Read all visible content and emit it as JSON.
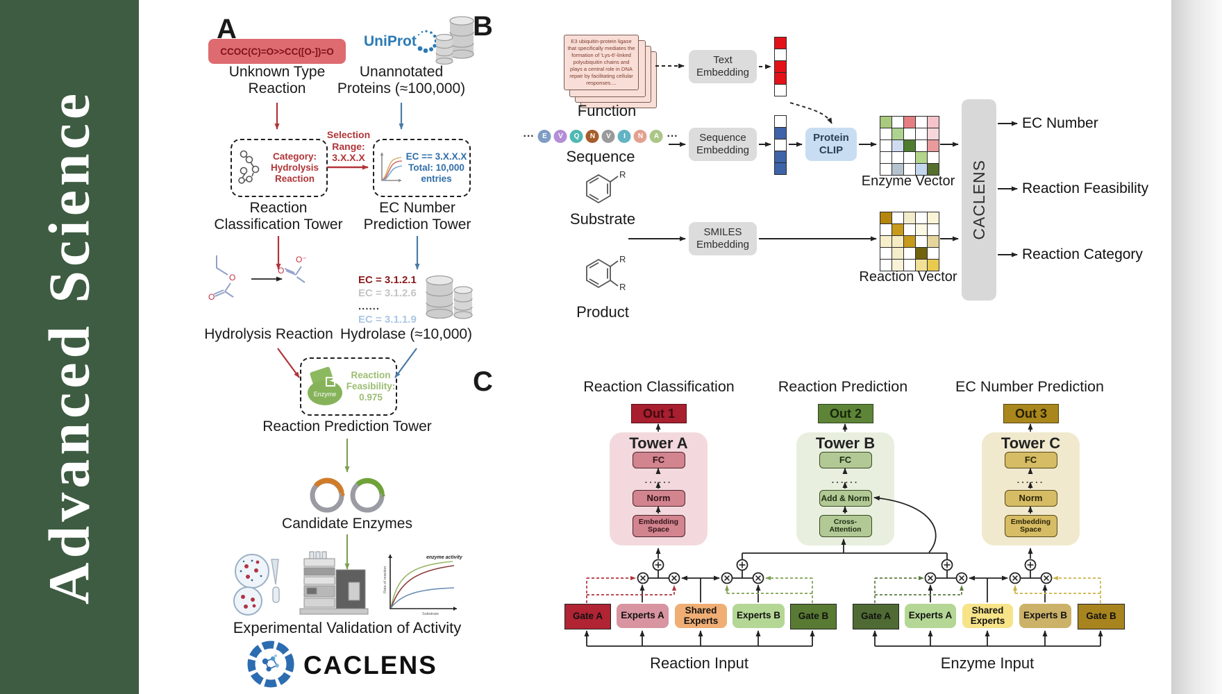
{
  "journal": {
    "vertical_text": "Advanced  Science"
  },
  "colors": {
    "sidebar_green": "#3e5c42",
    "red_accent": "#b13437",
    "blue_accent": "#4a7ba6",
    "green_accent": "#7f9f53",
    "smiles_box_bg": "#dd6b70",
    "tower_a_bg": "#f3d9dd",
    "tower_b_bg": "#e9efdf",
    "tower_c_bg": "#f1e9cd",
    "out1_bg": "#a81f2f",
    "out2_bg": "#5e8437",
    "out3_bg": "#a9871c",
    "protein_clip_bg": "#c9ddf2",
    "gray_box_bg": "#dcdcdc"
  },
  "panelA": {
    "label": "A",
    "smiles_box": "CCOC(C)=O>>CC([O-])=O",
    "unknown_type": [
      "Unknown Type",
      "Reaction"
    ],
    "uniprot": "UniProt",
    "unannotated": [
      "Unannotated",
      "Proteins (≈100,000)"
    ],
    "selection": [
      "Selection",
      "Range:",
      "3.X.X.X"
    ],
    "classification_box": [
      "Category:",
      "Hydrolysis",
      "Reaction"
    ],
    "ec_box": [
      "EC == 3.X.X.X",
      "Total: 10,000",
      "entries"
    ],
    "classification_tower": [
      "Reaction",
      "Classification Tower"
    ],
    "ec_tower": [
      "EC Number",
      "Prediction Tower"
    ],
    "ec_list": [
      "EC = 3.1.2.1",
      "EC = 3.1.2.6",
      "......",
      "EC = 3.1.1.9"
    ],
    "hydrolysis_reaction": "Hydrolysis Reaction",
    "hydrolase": "Hydrolase (≈10,000)",
    "enzyme_blob": "Enzyme",
    "feasibility": [
      "Reaction",
      "Feasibility:",
      "0.975"
    ],
    "prediction_tower": "Reaction Prediction Tower",
    "candidate_enzymes": "Candidate Enzymes",
    "atom_o": "O",
    "atom_o_minus": "O⁻",
    "activity_graph": {
      "curve_label": "enzyme activity",
      "ylabel": "Rate of reaction",
      "xlabel": "Substrate",
      "curve_colors": [
        "#9ab86a",
        "#8b3a3a",
        "#6a8fb5"
      ]
    },
    "validation": "Experimental Validation of Activity",
    "logo_text": "CACLENS"
  },
  "panelB": {
    "label": "B",
    "function_card": "E3 ubiquitin-protein ligase that specifically mediates the formation of 'Lys-6'-linked polyubiquitin chains and plays a central role in DNA repair by facilitating cellular responses....",
    "function_label": "Function",
    "ellipsis": "···",
    "sequence_label": "Sequence",
    "letters": [
      {
        "t": "E",
        "c": "#7f9dc4"
      },
      {
        "t": "V",
        "c": "#b48ed6"
      },
      {
        "t": "Q",
        "c": "#4fb8b2"
      },
      {
        "t": "N",
        "c": "#a65c2b"
      },
      {
        "t": "V",
        "c": "#9a9a9a"
      },
      {
        "t": "I",
        "c": "#62b4c5"
      },
      {
        "t": "N",
        "c": "#e2a18f"
      },
      {
        "t": "A",
        "c": "#abc687"
      }
    ],
    "substrate_label": "Substrate",
    "product_label": "Product",
    "r_label": "R",
    "text_embedding": [
      "Text",
      "Embedding"
    ],
    "sequence_embedding": [
      "Sequence",
      "Embedding"
    ],
    "smiles_embedding": [
      "SMILES",
      "Embedding"
    ],
    "protein_clip": [
      "Protein",
      "CLIP"
    ],
    "text_vector_cells": [
      [
        "#e31219"
      ],
      [
        "#ffffff"
      ],
      [
        "#e31219"
      ],
      [
        "#e31219"
      ],
      [
        "#ffffff"
      ]
    ],
    "seq_vector_cells": [
      [
        "#ffffff"
      ],
      [
        "#3e63a8"
      ],
      [
        "#ffffff"
      ],
      [
        "#3e63a8"
      ],
      [
        "#3e63a8"
      ]
    ],
    "enzyme_vector": {
      "label": "Enzyme Vector",
      "cells": [
        [
          "#a9c97e",
          "#ffffff",
          "#e57f82",
          "#ffffff",
          "#f4c3cb"
        ],
        [
          "#ffffff",
          "#aed290",
          "#ffffff",
          "#ffffff",
          "#f6d6da"
        ],
        [
          "#ffffff",
          "#cfdcf0",
          "#4f7d30",
          "#ffffff",
          "#e89a9c"
        ],
        [
          "#ffffff",
          "#ffffff",
          "#ffffff",
          "#b3d68b",
          "#ffffff"
        ],
        [
          "#ffffff",
          "#b4c3cd",
          "#ffffff",
          "#c5d7ee",
          "#566f2f"
        ]
      ]
    },
    "reaction_vector": {
      "label": "Reaction Vector",
      "cells": [
        [
          "#b5860e",
          "#ffffff",
          "#f3ecca",
          "#ffffff",
          "#faf3d6"
        ],
        [
          "#ffffff",
          "#c79a1c",
          "#ffffff",
          "#fdf8e4",
          "#ffffff"
        ],
        [
          "#f7eecb",
          "#f5ecc4",
          "#c79a1c",
          "#ffffff",
          "#e5d49c"
        ],
        [
          "#ffffff",
          "#f5ecca",
          "#ffffff",
          "#72630e",
          "#ffffff"
        ],
        [
          "#ffffff",
          "#f9f1d8",
          "#ffffff",
          "#f2e098",
          "#e9c94e"
        ]
      ]
    },
    "caclens_bar": "CACLENS",
    "outputs": [
      "EC Number",
      "Reaction Feasibility",
      "Reaction Category"
    ]
  },
  "panelC": {
    "label": "C",
    "headers": [
      "Reaction Classification",
      "Reaction Prediction",
      "EC Number Prediction"
    ],
    "towers": [
      {
        "out": "Out 1",
        "name": "Tower A",
        "fc": "FC",
        "dots": "......",
        "mid": "Norm",
        "bottom": [
          "Embedding",
          "Space"
        ]
      },
      {
        "out": "Out 2",
        "name": "Tower B",
        "fc": "FC",
        "dots": "......",
        "mid": "Add & Norm",
        "bottom": [
          "Cross-",
          "Attention"
        ]
      },
      {
        "out": "Out 3",
        "name": "Tower C",
        "fc": "FC",
        "dots": "......",
        "mid": "Norm",
        "bottom": [
          "Embedding",
          "Space"
        ]
      }
    ],
    "moe_left": {
      "gate_a": "Gate A",
      "experts_a": "Experts A",
      "shared": [
        "Shared",
        "Experts"
      ],
      "experts_b": "Experts B",
      "gate_b": "Gate B",
      "input": "Reaction Input"
    },
    "moe_right": {
      "gate_a": "Gate A",
      "experts_a": "Experts A",
      "shared": [
        "Shared",
        "Experts"
      ],
      "experts_b": "Experts B",
      "gate_b": "Gate B",
      "input": "Enzyme Input"
    }
  }
}
